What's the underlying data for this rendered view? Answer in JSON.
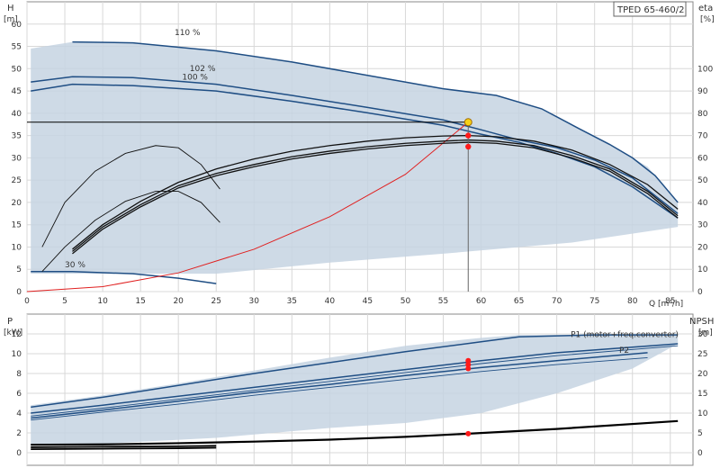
{
  "chart_data": [
    {
      "type": "line",
      "title": "TPED 65-460/2",
      "xlabel": "Q [m³/h]",
      "ylabel": "H",
      "ylabel_unit": "[m]",
      "y2label": "eta",
      "y2label_unit": "[%]",
      "xlim": [
        0,
        88
      ],
      "ylim": [
        0,
        65
      ],
      "y2lim": [
        0,
        130
      ],
      "x_ticks": [
        0,
        5,
        10,
        15,
        20,
        25,
        30,
        35,
        40,
        45,
        50,
        55,
        60,
        65,
        70,
        75,
        80,
        85
      ],
      "y_ticks": [
        0,
        5,
        10,
        15,
        20,
        25,
        30,
        35,
        40,
        45,
        50,
        55,
        60
      ],
      "y2_ticks": [
        0,
        10,
        20,
        30,
        40,
        50,
        60,
        70,
        80,
        90,
        100
      ],
      "grid": true,
      "curve_labels": [
        {
          "text": "110 %",
          "x": 19.5,
          "y": 57.5
        },
        {
          "text": "102 %",
          "x": 21.5,
          "y": 49.5
        },
        {
          "text": "100 %",
          "x": 20.5,
          "y": 47.5
        },
        {
          "text": "30 %",
          "x": 5,
          "y": 5.5
        }
      ],
      "operating_point": {
        "x": 58.3,
        "y": 38,
        "eta_points": [
          35,
          32.5
        ]
      },
      "envelope": [
        [
          0.5,
          54.5
        ],
        [
          6,
          56
        ],
        [
          14,
          55.8
        ],
        [
          25,
          54
        ],
        [
          35,
          51.5
        ],
        [
          45,
          48.5
        ],
        [
          55,
          45.5
        ],
        [
          62,
          44
        ],
        [
          68,
          41
        ],
        [
          73,
          36.5
        ],
        [
          77,
          33
        ],
        [
          82,
          28
        ],
        [
          86,
          20
        ],
        [
          86,
          14.5
        ],
        [
          72,
          11
        ],
        [
          55,
          8.5
        ],
        [
          40,
          6.5
        ],
        [
          25,
          4
        ],
        [
          14,
          4
        ],
        [
          3,
          4
        ],
        [
          0.5,
          4
        ]
      ],
      "series": [
        {
          "name": "",
          "role": "head",
          "values": [
            [
              6,
              56
            ],
            [
              14,
              55.8
            ],
            [
              25,
              54
            ],
            [
              35,
              51.5
            ],
            [
              45,
              48.5
            ],
            [
              55,
              45.5
            ],
            [
              62,
              44
            ],
            [
              68,
              41
            ],
            [
              73,
              36.5
            ],
            [
              77,
              33
            ],
            [
              80,
              30
            ],
            [
              83,
              26
            ],
            [
              86,
              20
            ]
          ]
        },
        {
          "name": "",
          "role": "head",
          "values": [
            [
              0.5,
              47
            ],
            [
              6,
              48.2
            ],
            [
              14,
              48
            ],
            [
              25,
              46.5
            ],
            [
              35,
              44
            ],
            [
              45,
              41.3
            ],
            [
              55,
              38.5
            ],
            [
              60,
              36.3
            ],
            [
              65,
              34
            ],
            [
              70,
              32.3
            ],
            [
              75,
              29.5
            ],
            [
              80,
              25.5
            ],
            [
              86,
              17.5
            ]
          ]
        },
        {
          "name": "",
          "role": "head",
          "values": [
            [
              0.5,
              45
            ],
            [
              6,
              46.5
            ],
            [
              14,
              46.2
            ],
            [
              25,
              45
            ],
            [
              35,
              42.7
            ],
            [
              45,
              40.1
            ],
            [
              55,
              37.3
            ],
            [
              60,
              35.3
            ],
            [
              65,
              33.5
            ],
            [
              70,
              31
            ],
            [
              75,
              28
            ],
            [
              80,
              23.5
            ],
            [
              86,
              16.5
            ]
          ]
        },
        {
          "name": "",
          "role": "head",
          "values": [
            [
              0.5,
              4.5
            ],
            [
              6,
              4.5
            ],
            [
              14,
              4
            ],
            [
              20,
              3
            ],
            [
              25,
              1.8
            ]
          ]
        },
        {
          "name": "",
          "role": "system",
          "values": [
            [
              0,
              0
            ],
            [
              10,
              1.1
            ],
            [
              20,
              4.2
            ],
            [
              30,
              9.5
            ],
            [
              40,
              16.8
            ],
            [
              50,
              26.3
            ],
            [
              58.3,
              38
            ]
          ]
        },
        {
          "name": "",
          "role": "efficiency",
          "values": [
            [
              6,
              18
            ],
            [
              10,
              29
            ],
            [
              15,
              39
            ],
            [
              20,
              47.5
            ],
            [
              25,
              53
            ],
            [
              30,
              57
            ],
            [
              35,
              60.5
            ],
            [
              40,
              63
            ],
            [
              45,
              65
            ],
            [
              50,
              66.5
            ],
            [
              55,
              67.5
            ],
            [
              58.3,
              68
            ],
            [
              62,
              67.5
            ],
            [
              67,
              65.5
            ],
            [
              72,
              61
            ],
            [
              77,
              55
            ],
            [
              82,
              45
            ],
            [
              86,
              34
            ]
          ]
        },
        {
          "name": "",
          "role": "efficiency",
          "values": [
            [
              6,
              17
            ],
            [
              10,
              28
            ],
            [
              15,
              38
            ],
            [
              20,
              46.5
            ],
            [
              25,
              52
            ],
            [
              30,
              56
            ],
            [
              35,
              59.5
            ],
            [
              40,
              62
            ],
            [
              45,
              64
            ],
            [
              50,
              65.5
            ],
            [
              55,
              66.5
            ],
            [
              58.3,
              67
            ],
            [
              62,
              66.5
            ],
            [
              67,
              64.5
            ],
            [
              72,
              60
            ],
            [
              77,
              54
            ],
            [
              82,
              44
            ],
            [
              86,
              33
            ]
          ]
        },
        {
          "name": "",
          "role": "efficiency",
          "values": [
            [
              6,
              19
            ],
            [
              10,
              30
            ],
            [
              15,
              40.5
            ],
            [
              20,
              49
            ],
            [
              25,
              55
            ],
            [
              30,
              59.5
            ],
            [
              35,
              63
            ],
            [
              40,
              65.5
            ],
            [
              45,
              67.5
            ],
            [
              50,
              69
            ],
            [
              55,
              69.8
            ],
            [
              58.3,
              70
            ],
            [
              62,
              69.5
            ],
            [
              67,
              67.5
            ],
            [
              72,
              63.5
            ],
            [
              77,
              57
            ],
            [
              82,
              48
            ],
            [
              86,
              37
            ]
          ]
        },
        {
          "name": "",
          "role": "efficiency",
          "values": [
            [
              2,
              20
            ],
            [
              5,
              40
            ],
            [
              9,
              54
            ],
            [
              13,
              62
            ],
            [
              17,
              65.5
            ],
            [
              20,
              64.5
            ],
            [
              23,
              57
            ],
            [
              25.5,
              46
            ]
          ]
        },
        {
          "name": "",
          "role": "efficiency",
          "values": [
            [
              2,
              9
            ],
            [
              5,
              20
            ],
            [
              9,
              32
            ],
            [
              13,
              40.5
            ],
            [
              17,
              45
            ],
            [
              20,
              45
            ],
            [
              23,
              40
            ],
            [
              25.5,
              31
            ]
          ]
        }
      ]
    },
    {
      "type": "line",
      "ylabel": "P",
      "ylabel_unit": "[kW]",
      "y2label": "NPSH",
      "y2label_unit": "[m]",
      "xlim": [
        0,
        88
      ],
      "ylim": [
        0,
        14
      ],
      "y2lim": [
        0,
        35
      ],
      "y_ticks": [
        0,
        2,
        4,
        6,
        8,
        10,
        12
      ],
      "y2_ticks": [
        0,
        5,
        10,
        15,
        20,
        25,
        30
      ],
      "grid": true,
      "curve_labels": [
        {
          "text": "P1 (motor+freq.converter)",
          "x": 79,
          "y": 11.7
        },
        {
          "text": "P2",
          "x": 87,
          "y": 10.1
        }
      ],
      "operating_point": {
        "x": 58.3,
        "p_points": [
          9.3,
          8.9,
          8.5
        ],
        "npsh": 4.8
      },
      "envelope": [
        [
          0.5,
          4.8
        ],
        [
          10,
          5.8
        ],
        [
          20,
          7
        ],
        [
          30,
          8.3
        ],
        [
          40,
          9.6
        ],
        [
          50,
          10.8
        ],
        [
          60,
          11.6
        ],
        [
          65,
          11.9
        ],
        [
          86,
          11.9
        ],
        [
          86,
          11
        ],
        [
          80,
          8.5
        ],
        [
          70,
          6
        ],
        [
          60,
          4
        ],
        [
          50,
          3
        ],
        [
          40,
          2.5
        ],
        [
          25,
          1.5
        ],
        [
          10,
          0.9
        ],
        [
          0.5,
          0.7
        ]
      ],
      "series": [
        {
          "name": "P1 (motor+freq.converter)",
          "role": "power",
          "values": [
            [
              0.5,
              4.6
            ],
            [
              10,
              5.6
            ],
            [
              20,
              6.8
            ],
            [
              30,
              8
            ],
            [
              40,
              9.1
            ],
            [
              50,
              10.2
            ],
            [
              60,
              11.2
            ],
            [
              65,
              11.7
            ],
            [
              75,
              11.9
            ],
            [
              86,
              11.9
            ]
          ]
        },
        {
          "name": "",
          "role": "power",
          "values": [
            [
              0.5,
              4
            ],
            [
              10,
              4.8
            ],
            [
              20,
              5.7
            ],
            [
              30,
              6.6
            ],
            [
              40,
              7.5
            ],
            [
              50,
              8.4
            ],
            [
              60,
              9.3
            ],
            [
              70,
              10.1
            ],
            [
              86,
              11
            ]
          ]
        },
        {
          "name": "",
          "role": "power",
          "values": [
            [
              0.5,
              3.7
            ],
            [
              10,
              4.5
            ],
            [
              20,
              5.4
            ],
            [
              30,
              6.3
            ],
            [
              40,
              7.2
            ],
            [
              50,
              8.1
            ],
            [
              60,
              9
            ],
            [
              70,
              9.8
            ],
            [
              86,
              10.8
            ]
          ]
        },
        {
          "name": "P2",
          "role": "power",
          "values": [
            [
              0.5,
              3.5
            ],
            [
              10,
              4.3
            ],
            [
              20,
              5.2
            ],
            [
              30,
              6.1
            ],
            [
              40,
              6.9
            ],
            [
              50,
              7.8
            ],
            [
              60,
              8.6
            ],
            [
              70,
              9.3
            ],
            [
              82,
              10.1
            ]
          ]
        },
        {
          "name": "",
          "role": "power",
          "values": [
            [
              0.5,
              3.3
            ],
            [
              10,
              4.1
            ],
            [
              20,
              4.9
            ],
            [
              30,
              5.8
            ],
            [
              40,
              6.6
            ],
            [
              50,
              7.4
            ],
            [
              60,
              8.2
            ],
            [
              70,
              8.9
            ],
            [
              82,
              9.6
            ]
          ]
        },
        {
          "name": "",
          "role": "npsh",
          "values": [
            [
              0.5,
              2
            ],
            [
              10,
              2.1
            ],
            [
              20,
              2.4
            ],
            [
              30,
              2.8
            ],
            [
              40,
              3.3
            ],
            [
              50,
              4
            ],
            [
              58.3,
              4.8
            ],
            [
              70,
              6
            ],
            [
              86,
              8
            ]
          ]
        },
        {
          "name": "",
          "role": "power",
          "values": [
            [
              0.5,
              0.55
            ],
            [
              10,
              0.6
            ],
            [
              20,
              0.65
            ],
            [
              25,
              0.7
            ]
          ]
        },
        {
          "name": "",
          "role": "power",
          "values": [
            [
              0.5,
              0.35
            ],
            [
              10,
              0.4
            ],
            [
              20,
              0.45
            ],
            [
              25,
              0.5
            ]
          ]
        }
      ]
    }
  ]
}
